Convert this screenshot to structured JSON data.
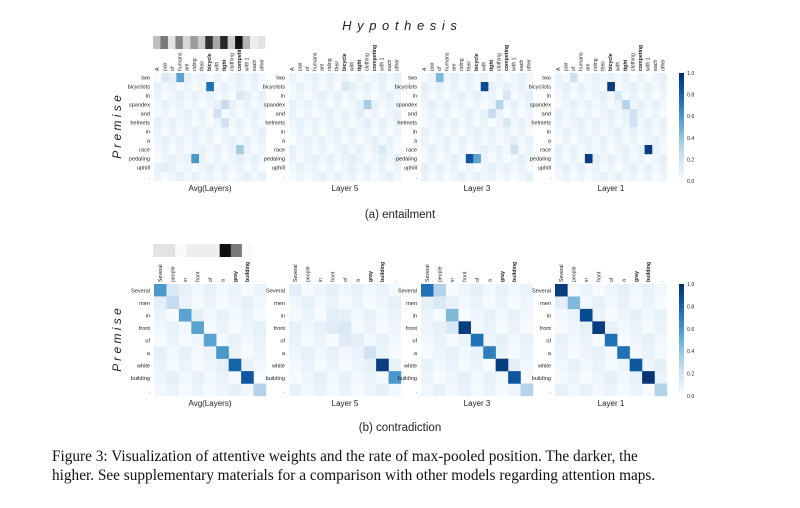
{
  "figure": {
    "hypothesis_label": "H y p o t h e s i s",
    "premise_label": "P r e m i s e",
    "colorbar_ticks": [
      "1.0",
      "0.8",
      "0.6",
      "0.4",
      "0.2",
      "0.0"
    ],
    "panels": [
      {
        "caption": "(a) entailment",
        "premise": [
          "two",
          "bicyclists",
          "in",
          "spandex",
          "and",
          "helmets",
          "in",
          "a",
          "race",
          "pedaling",
          "uphill",
          "."
        ],
        "hypothesis": [
          "A",
          "pair",
          "of",
          "humans",
          "are",
          "riding",
          "their",
          "bicycle",
          "with",
          "tight",
          "clothing",
          "competing",
          "with 1",
          "each",
          "other"
        ],
        "bold_hypothesis": [
          "bicycle",
          "tight",
          "competing"
        ],
        "maxpool_rate": [
          0.25,
          0.55,
          0.1,
          0.5,
          0.15,
          0.4,
          0.2,
          0.85,
          0.35,
          0.9,
          0.2,
          1.0,
          0.3,
          0.05,
          0.1
        ],
        "heatmaps": [
          {
            "title": "Avg(Layers)",
            "cells": [
              [
                0,
                3,
                0.55
              ],
              [
                1,
                7,
                0.75
              ],
              [
                8,
                11,
                0.35
              ],
              [
                9,
                5,
                0.6
              ],
              [
                3,
                9,
                0.25
              ],
              [
                4,
                8,
                0.2
              ],
              [
                5,
                9,
                0.2
              ],
              [
                2,
                11,
                0.15
              ],
              [
                0,
                1,
                0.15
              ],
              [
                10,
                1,
                0.1
              ]
            ]
          },
          {
            "title": "Layer 5",
            "cells": [
              [
                3,
                10,
                0.35
              ],
              [
                1,
                7,
                0.15
              ],
              [
                8,
                12,
                0.15
              ],
              [
                4,
                9,
                0.1
              ],
              [
                9,
                8,
                0.1
              ],
              [
                5,
                10,
                0.1
              ]
            ]
          },
          {
            "title": "Layer 3",
            "cells": [
              [
                0,
                2,
                0.45
              ],
              [
                1,
                8,
                0.9
              ],
              [
                9,
                6,
                0.85
              ],
              [
                9,
                7,
                0.55
              ],
              [
                3,
                10,
                0.3
              ],
              [
                4,
                9,
                0.25
              ],
              [
                5,
                11,
                0.15
              ],
              [
                8,
                12,
                0.2
              ],
              [
                2,
                11,
                0.15
              ]
            ]
          },
          {
            "title": "Layer 1",
            "cells": [
              [
                1,
                7,
                0.95
              ],
              [
                9,
                4,
                0.95
              ],
              [
                8,
                12,
                0.95
              ],
              [
                0,
                2,
                0.2
              ],
              [
                3,
                9,
                0.3
              ],
              [
                4,
                10,
                0.2
              ],
              [
                5,
                10,
                0.2
              ],
              [
                2,
                8,
                0.15
              ]
            ]
          }
        ]
      },
      {
        "caption": "(b) contradiction",
        "premise": [
          "Several",
          "men",
          "in",
          "front",
          "of",
          "a",
          "white",
          "building",
          "."
        ],
        "hypothesis": [
          "Several",
          "people",
          "in",
          "front",
          "of",
          "a",
          "gray",
          "building",
          "."
        ],
        "bold_hypothesis": [
          "gray",
          "building"
        ],
        "maxpool_rate": [
          0.1,
          0.1,
          0.0,
          0.05,
          0.05,
          0.05,
          1.0,
          0.55,
          0.0
        ],
        "heatmaps": [
          {
            "title": "Avg(Layers)",
            "cells": [
              [
                0,
                0,
                0.6
              ],
              [
                0,
                1,
                0.15
              ],
              [
                1,
                1,
                0.25
              ],
              [
                2,
                2,
                0.55
              ],
              [
                3,
                3,
                0.55
              ],
              [
                4,
                4,
                0.55
              ],
              [
                5,
                5,
                0.6
              ],
              [
                6,
                6,
                0.8
              ],
              [
                7,
                7,
                0.85
              ],
              [
                8,
                8,
                0.3
              ],
              [
                1,
                0,
                0.1
              ]
            ]
          },
          {
            "title": "Layer 5",
            "cells": [
              [
                0,
                0,
                0.1
              ],
              [
                2,
                3,
                0.1
              ],
              [
                3,
                4,
                0.15
              ],
              [
                3,
                3,
                0.12
              ],
              [
                4,
                4,
                0.12
              ],
              [
                4,
                5,
                0.1
              ],
              [
                5,
                6,
                0.2
              ],
              [
                6,
                7,
                0.95
              ],
              [
                7,
                8,
                0.6
              ]
            ]
          },
          {
            "title": "Layer 3",
            "cells": [
              [
                0,
                0,
                0.75
              ],
              [
                0,
                1,
                0.3
              ],
              [
                1,
                1,
                0.15
              ],
              [
                2,
                2,
                0.45
              ],
              [
                3,
                3,
                0.95
              ],
              [
                4,
                4,
                0.75
              ],
              [
                5,
                5,
                0.7
              ],
              [
                6,
                6,
                0.95
              ],
              [
                7,
                7,
                0.85
              ],
              [
                8,
                8,
                0.3
              ],
              [
                3,
                2,
                0.15
              ]
            ]
          },
          {
            "title": "Layer 1",
            "cells": [
              [
                0,
                0,
                0.95
              ],
              [
                1,
                1,
                0.45
              ],
              [
                2,
                2,
                0.9
              ],
              [
                3,
                3,
                0.95
              ],
              [
                4,
                4,
                0.75
              ],
              [
                5,
                5,
                0.75
              ],
              [
                6,
                6,
                0.85
              ],
              [
                7,
                7,
                0.98
              ],
              [
                8,
                8,
                0.3
              ],
              [
                1,
                0,
                0.1
              ]
            ]
          }
        ]
      }
    ]
  },
  "caption": {
    "line1": "Figure 3: Visualization of attentive weights and the rate of max-pooled position. The darker, the",
    "line2": "higher. See supplementary materials for a comparison with other models regarding attention maps."
  }
}
